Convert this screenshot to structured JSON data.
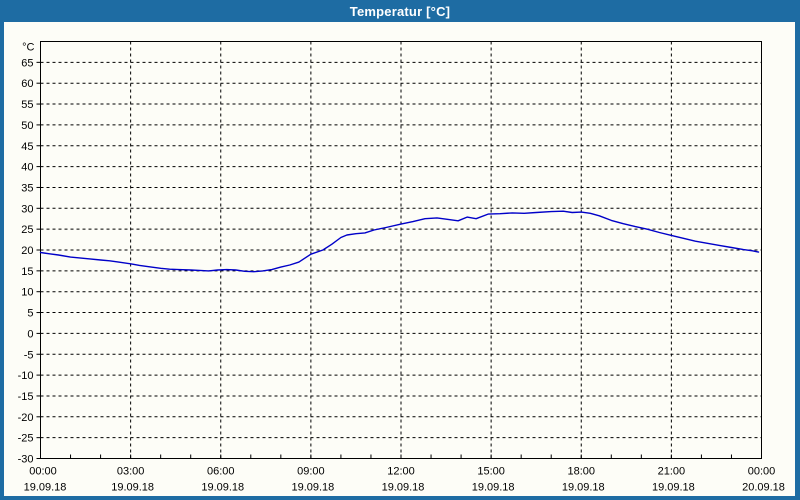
{
  "window": {
    "title": "Temperatur [°C]",
    "titlebar_color": "#1e6ca3",
    "border_color": "#1e6ca3",
    "background": "#fdfdf7"
  },
  "chart_data": {
    "type": "line",
    "title": "Temperatur [°C]",
    "unit_label": "°C",
    "grid": "dashed",
    "grid_color": "#000000",
    "axis_color": "#000000",
    "line_color": "#0000c8",
    "y_min": -30,
    "y_max": 70,
    "y_tick_step": 5,
    "y_tick_labels": [
      "65",
      "60",
      "55",
      "50",
      "45",
      "40",
      "35",
      "30",
      "25",
      "20",
      "15",
      "10",
      "5",
      "0",
      "-5",
      "-10",
      "-15",
      "-20",
      "-25",
      "-30"
    ],
    "x_axis": {
      "start_hour": 0,
      "end_hour": 24,
      "minor_tick_hours": 1,
      "major_grid_hours": 3,
      "labels": [
        {
          "hour": 0,
          "time": "00:00",
          "date": "19.09.18"
        },
        {
          "hour": 3,
          "time": "03:00",
          "date": "19.09.18"
        },
        {
          "hour": 6,
          "time": "06:00",
          "date": "19.09.18"
        },
        {
          "hour": 9,
          "time": "09:00",
          "date": "19.09.18"
        },
        {
          "hour": 12,
          "time": "12:00",
          "date": "19.09.18"
        },
        {
          "hour": 15,
          "time": "15:00",
          "date": "19.09.18"
        },
        {
          "hour": 18,
          "time": "18:00",
          "date": "19.09.18"
        },
        {
          "hour": 21,
          "time": "21:00",
          "date": "19.09.18"
        },
        {
          "hour": 24,
          "time": "00:00",
          "date": "20.09.18"
        }
      ]
    },
    "series": [
      {
        "name": "Temperatur",
        "color": "#0000c8",
        "points": [
          [
            0.0,
            19.4
          ],
          [
            0.3,
            19.1
          ],
          [
            0.6,
            18.8
          ],
          [
            1.0,
            18.3
          ],
          [
            1.3,
            18.1
          ],
          [
            1.6,
            17.9
          ],
          [
            2.0,
            17.6
          ],
          [
            2.3,
            17.4
          ],
          [
            2.6,
            17.1
          ],
          [
            3.0,
            16.7
          ],
          [
            3.3,
            16.3
          ],
          [
            3.6,
            16.0
          ],
          [
            4.0,
            15.6
          ],
          [
            4.3,
            15.4
          ],
          [
            4.6,
            15.3
          ],
          [
            5.0,
            15.2
          ],
          [
            5.3,
            15.1
          ],
          [
            5.6,
            15.0
          ],
          [
            5.9,
            15.2
          ],
          [
            6.2,
            15.3
          ],
          [
            6.5,
            15.2
          ],
          [
            6.8,
            14.9
          ],
          [
            7.1,
            14.8
          ],
          [
            7.4,
            15.0
          ],
          [
            7.7,
            15.3
          ],
          [
            8.0,
            15.9
          ],
          [
            8.3,
            16.4
          ],
          [
            8.6,
            17.1
          ],
          [
            9.0,
            19.0
          ],
          [
            9.4,
            20.0
          ],
          [
            9.7,
            21.4
          ],
          [
            10.0,
            23.0
          ],
          [
            10.2,
            23.6
          ],
          [
            10.5,
            23.9
          ],
          [
            10.8,
            24.1
          ],
          [
            11.1,
            24.8
          ],
          [
            11.5,
            25.4
          ],
          [
            12.0,
            26.2
          ],
          [
            12.4,
            26.8
          ],
          [
            12.8,
            27.5
          ],
          [
            13.2,
            27.7
          ],
          [
            13.6,
            27.3
          ],
          [
            13.9,
            27.0
          ],
          [
            14.2,
            27.9
          ],
          [
            14.5,
            27.5
          ],
          [
            14.9,
            28.6
          ],
          [
            15.3,
            28.7
          ],
          [
            15.7,
            28.9
          ],
          [
            16.1,
            28.8
          ],
          [
            16.5,
            29.0
          ],
          [
            17.0,
            29.2
          ],
          [
            17.4,
            29.3
          ],
          [
            17.7,
            29.0
          ],
          [
            18.0,
            29.1
          ],
          [
            18.3,
            28.8
          ],
          [
            18.6,
            28.2
          ],
          [
            19.0,
            27.1
          ],
          [
            19.4,
            26.3
          ],
          [
            19.8,
            25.6
          ],
          [
            20.2,
            25.0
          ],
          [
            20.6,
            24.2
          ],
          [
            21.0,
            23.5
          ],
          [
            21.4,
            22.8
          ],
          [
            21.8,
            22.1
          ],
          [
            22.2,
            21.6
          ],
          [
            22.6,
            21.1
          ],
          [
            23.0,
            20.6
          ],
          [
            23.4,
            20.1
          ],
          [
            23.7,
            19.8
          ],
          [
            23.9,
            19.5
          ]
        ]
      }
    ]
  }
}
